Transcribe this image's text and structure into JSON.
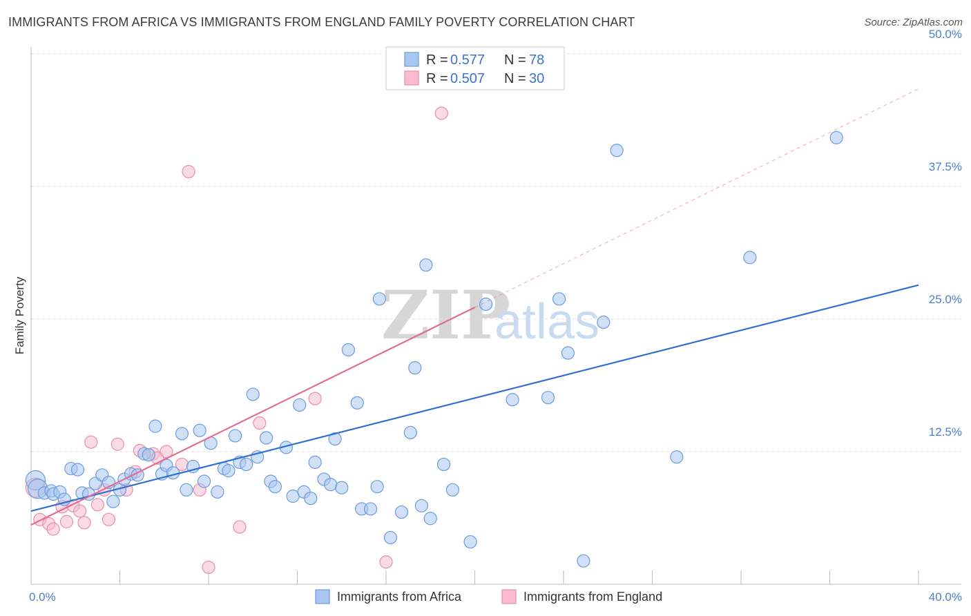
{
  "title": "IMMIGRANTS FROM AFRICA VS IMMIGRANTS FROM ENGLAND FAMILY POVERTY CORRELATION CHART",
  "source": "Source: ZipAtlas.com",
  "watermark": {
    "zip": "ZIP",
    "atlas": "atlas"
  },
  "colors": {
    "africa_fill": "#a9c6ef",
    "africa_stroke": "#6b9bdc",
    "africa_line": "#2f6fcf",
    "england_fill": "#f6bccd",
    "england_stroke": "#e98daa",
    "england_line": "#e06b93",
    "grid": "#dddddd",
    "tick_label": "#4a7fd4"
  },
  "legend": {
    "rows": [
      {
        "r_label": "R = ",
        "r_value": "0.577",
        "n_label": "N = ",
        "n_value": "78"
      },
      {
        "r_label": "R = ",
        "r_value": "0.507",
        "n_label": "N = ",
        "n_value": "30"
      }
    ]
  },
  "chart_data": {
    "type": "scatter",
    "title": "IMMIGRANTS FROM AFRICA VS IMMIGRANTS FROM ENGLAND FAMILY POVERTY CORRELATION CHART",
    "xlabel": "",
    "ylabel": "Family Poverty",
    "xlim": [
      0,
      40
    ],
    "ylim": [
      0,
      50
    ],
    "y_ticks": [
      {
        "value": 12.5,
        "label": "12.5%"
      },
      {
        "value": 25.0,
        "label": "25.0%"
      },
      {
        "value": 37.5,
        "label": "37.5%"
      },
      {
        "value": 50.0,
        "label": "50.0%"
      }
    ],
    "x_tick_labels": [
      {
        "value": 0,
        "label": "0.0%"
      },
      {
        "value": 40,
        "label": "40.0%"
      }
    ],
    "grid": true,
    "legend_position": "top-center",
    "series": [
      {
        "name": "Immigrants from Africa",
        "trend": {
          "x": [
            0,
            40
          ],
          "y": [
            6.9,
            28.2
          ]
        },
        "points": [
          {
            "x": 0.2,
            "y": 9.8,
            "s": 2
          },
          {
            "x": 0.3,
            "y": 9.0,
            "s": 2
          },
          {
            "x": 0.6,
            "y": 8.6,
            "s": 1
          },
          {
            "x": 0.9,
            "y": 8.8,
            "s": 1
          },
          {
            "x": 1.0,
            "y": 8.5,
            "s": 1
          },
          {
            "x": 1.3,
            "y": 8.7,
            "s": 1
          },
          {
            "x": 1.5,
            "y": 8.0,
            "s": 1
          },
          {
            "x": 1.8,
            "y": 10.9,
            "s": 1
          },
          {
            "x": 2.1,
            "y": 10.8,
            "s": 1
          },
          {
            "x": 2.3,
            "y": 8.6,
            "s": 1
          },
          {
            "x": 2.6,
            "y": 8.5,
            "s": 1
          },
          {
            "x": 2.9,
            "y": 9.5,
            "s": 1
          },
          {
            "x": 3.2,
            "y": 10.3,
            "s": 1
          },
          {
            "x": 3.5,
            "y": 9.6,
            "s": 1
          },
          {
            "x": 3.7,
            "y": 7.8,
            "s": 1
          },
          {
            "x": 4.0,
            "y": 8.9,
            "s": 1
          },
          {
            "x": 4.2,
            "y": 9.9,
            "s": 1
          },
          {
            "x": 4.5,
            "y": 10.4,
            "s": 1
          },
          {
            "x": 4.8,
            "y": 10.3,
            "s": 1
          },
          {
            "x": 5.1,
            "y": 12.3,
            "s": 1
          },
          {
            "x": 5.3,
            "y": 12.2,
            "s": 1
          },
          {
            "x": 5.6,
            "y": 14.9,
            "s": 1
          },
          {
            "x": 5.9,
            "y": 10.4,
            "s": 1
          },
          {
            "x": 6.1,
            "y": 11.2,
            "s": 1
          },
          {
            "x": 6.4,
            "y": 10.5,
            "s": 1
          },
          {
            "x": 6.8,
            "y": 14.2,
            "s": 1
          },
          {
            "x": 7.0,
            "y": 8.9,
            "s": 1
          },
          {
            "x": 7.3,
            "y": 11.1,
            "s": 1
          },
          {
            "x": 7.6,
            "y": 14.5,
            "s": 1
          },
          {
            "x": 7.8,
            "y": 9.7,
            "s": 1
          },
          {
            "x": 8.1,
            "y": 13.3,
            "s": 1
          },
          {
            "x": 8.4,
            "y": 8.7,
            "s": 1
          },
          {
            "x": 8.7,
            "y": 10.9,
            "s": 1
          },
          {
            "x": 8.9,
            "y": 10.7,
            "s": 1
          },
          {
            "x": 9.2,
            "y": 14.0,
            "s": 1
          },
          {
            "x": 9.4,
            "y": 11.5,
            "s": 1
          },
          {
            "x": 9.7,
            "y": 11.3,
            "s": 1
          },
          {
            "x": 10.0,
            "y": 17.9,
            "s": 1
          },
          {
            "x": 10.2,
            "y": 12.0,
            "s": 1
          },
          {
            "x": 10.6,
            "y": 13.8,
            "s": 1
          },
          {
            "x": 10.8,
            "y": 9.7,
            "s": 1
          },
          {
            "x": 11.0,
            "y": 9.2,
            "s": 1
          },
          {
            "x": 11.5,
            "y": 12.9,
            "s": 1
          },
          {
            "x": 11.8,
            "y": 8.3,
            "s": 1
          },
          {
            "x": 12.1,
            "y": 16.9,
            "s": 1
          },
          {
            "x": 12.3,
            "y": 8.7,
            "s": 1
          },
          {
            "x": 12.6,
            "y": 8.1,
            "s": 1
          },
          {
            "x": 12.8,
            "y": 11.5,
            "s": 1
          },
          {
            "x": 13.2,
            "y": 9.9,
            "s": 1
          },
          {
            "x": 13.5,
            "y": 9.4,
            "s": 1
          },
          {
            "x": 13.7,
            "y": 13.7,
            "s": 1
          },
          {
            "x": 14.0,
            "y": 9.1,
            "s": 1
          },
          {
            "x": 14.3,
            "y": 22.1,
            "s": 1
          },
          {
            "x": 14.7,
            "y": 17.1,
            "s": 1
          },
          {
            "x": 14.9,
            "y": 7.1,
            "s": 1
          },
          {
            "x": 15.3,
            "y": 7.1,
            "s": 1
          },
          {
            "x": 15.6,
            "y": 9.2,
            "s": 1
          },
          {
            "x": 15.7,
            "y": 26.9,
            "s": 1
          },
          {
            "x": 16.2,
            "y": 4.4,
            "s": 1
          },
          {
            "x": 16.7,
            "y": 6.8,
            "s": 1
          },
          {
            "x": 17.1,
            "y": 14.3,
            "s": 1
          },
          {
            "x": 17.3,
            "y": 20.4,
            "s": 1
          },
          {
            "x": 17.6,
            "y": 7.4,
            "s": 1
          },
          {
            "x": 17.8,
            "y": 30.1,
            "s": 1
          },
          {
            "x": 18.0,
            "y": 6.2,
            "s": 1
          },
          {
            "x": 18.6,
            "y": 11.3,
            "s": 1
          },
          {
            "x": 19.0,
            "y": 8.9,
            "s": 1
          },
          {
            "x": 19.8,
            "y": 4.0,
            "s": 1
          },
          {
            "x": 20.5,
            "y": 26.4,
            "s": 1
          },
          {
            "x": 21.7,
            "y": 17.4,
            "s": 1
          },
          {
            "x": 23.3,
            "y": 17.6,
            "s": 1
          },
          {
            "x": 23.8,
            "y": 26.9,
            "s": 1
          },
          {
            "x": 24.2,
            "y": 21.8,
            "s": 1
          },
          {
            "x": 24.9,
            "y": 2.2,
            "s": 1
          },
          {
            "x": 25.8,
            "y": 24.7,
            "s": 1
          },
          {
            "x": 26.4,
            "y": 40.9,
            "s": 1
          },
          {
            "x": 29.1,
            "y": 12.0,
            "s": 1
          },
          {
            "x": 32.4,
            "y": 30.8,
            "s": 1
          },
          {
            "x": 36.3,
            "y": 42.1,
            "s": 1
          }
        ]
      },
      {
        "name": "Immigrants from England",
        "trend": {
          "x": [
            0,
            20
          ],
          "y": [
            5.6,
            26.1
          ]
        },
        "trend_extension": {
          "x": [
            20,
            40
          ],
          "y": [
            26.1,
            46.7
          ]
        },
        "points": [
          {
            "x": 0.2,
            "y": 9.1,
            "s": 2
          },
          {
            "x": 0.4,
            "y": 6.1,
            "s": 1
          },
          {
            "x": 0.8,
            "y": 5.7,
            "s": 1
          },
          {
            "x": 1.0,
            "y": 5.2,
            "s": 1
          },
          {
            "x": 1.4,
            "y": 7.3,
            "s": 1
          },
          {
            "x": 1.6,
            "y": 5.9,
            "s": 1
          },
          {
            "x": 1.9,
            "y": 7.4,
            "s": 1
          },
          {
            "x": 2.2,
            "y": 6.9,
            "s": 1
          },
          {
            "x": 2.4,
            "y": 5.8,
            "s": 1
          },
          {
            "x": 2.7,
            "y": 13.4,
            "s": 1
          },
          {
            "x": 3.0,
            "y": 7.5,
            "s": 1
          },
          {
            "x": 3.3,
            "y": 8.9,
            "s": 1
          },
          {
            "x": 3.5,
            "y": 6.1,
            "s": 1
          },
          {
            "x": 3.9,
            "y": 13.2,
            "s": 1
          },
          {
            "x": 4.3,
            "y": 8.9,
            "s": 1
          },
          {
            "x": 4.7,
            "y": 10.6,
            "s": 1
          },
          {
            "x": 4.9,
            "y": 12.6,
            "s": 1
          },
          {
            "x": 5.5,
            "y": 12.3,
            "s": 1
          },
          {
            "x": 5.7,
            "y": 11.9,
            "s": 1
          },
          {
            "x": 6.1,
            "y": 12.5,
            "s": 1
          },
          {
            "x": 6.8,
            "y": 11.3,
            "s": 1
          },
          {
            "x": 7.1,
            "y": 38.9,
            "s": 1
          },
          {
            "x": 7.6,
            "y": 8.9,
            "s": 1
          },
          {
            "x": 8.0,
            "y": 1.6,
            "s": 1
          },
          {
            "x": 9.4,
            "y": 5.4,
            "s": 1
          },
          {
            "x": 10.3,
            "y": 15.2,
            "s": 1
          },
          {
            "x": 12.8,
            "y": 17.5,
            "s": 1
          },
          {
            "x": 16.0,
            "y": 2.1,
            "s": 1
          },
          {
            "x": 18.5,
            "y": 44.4,
            "s": 1
          }
        ]
      }
    ]
  },
  "bottom_legend": [
    {
      "label": "Immigrants from Africa"
    },
    {
      "label": "Immigrants from England"
    }
  ]
}
